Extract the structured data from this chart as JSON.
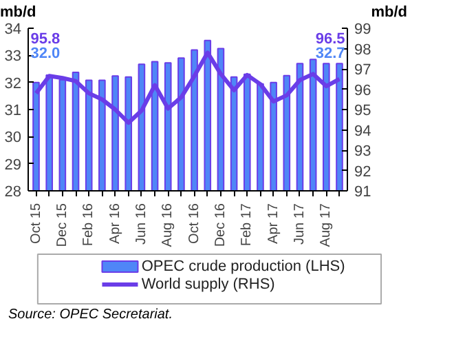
{
  "chart_data": {
    "type": "bar",
    "categories": [
      "Oct 15",
      null,
      "Dec 15",
      null,
      "Feb 16",
      null,
      "Apr 16",
      null,
      "Jun 16",
      null,
      "Aug 16",
      null,
      "Oct 16",
      null,
      "Dec 16",
      null,
      "Feb 17",
      null,
      "Apr 17",
      null,
      "Jun 17",
      null,
      "Aug 17",
      null
    ],
    "series": [
      {
        "name": "OPEC crude production (LHS)",
        "color": "#4f86f7",
        "values": [
          32.0,
          32.27,
          32.1,
          32.37,
          32.08,
          32.08,
          32.24,
          32.2,
          32.67,
          32.77,
          32.72,
          32.9,
          33.2,
          33.55,
          33.25,
          32.2,
          32.3,
          31.95,
          32.0,
          32.25,
          32.7,
          32.85,
          32.7,
          32.7
        ],
        "value_labels": [
          "32.0",
          null,
          null,
          null,
          null,
          null,
          null,
          null,
          null,
          null,
          null,
          null,
          null,
          null,
          null,
          null,
          null,
          null,
          null,
          null,
          null,
          null,
          null,
          "32.7"
        ]
      },
      {
        "name": "World supply (RHS)",
        "type": "line",
        "axis": "y2",
        "color": "#6a3de8",
        "values": [
          95.8,
          96.65,
          96.55,
          96.4,
          95.8,
          95.5,
          95.0,
          94.35,
          94.95,
          96.2,
          95.05,
          95.6,
          96.65,
          97.8,
          96.75,
          95.95,
          96.7,
          96.25,
          95.4,
          95.7,
          96.45,
          96.75,
          96.15,
          96.5
        ],
        "value_labels": [
          "95.8",
          null,
          null,
          null,
          null,
          null,
          null,
          null,
          null,
          null,
          null,
          null,
          null,
          null,
          null,
          null,
          null,
          null,
          null,
          null,
          null,
          null,
          null,
          "96.5"
        ]
      }
    ],
    "ylabel": "mb/d",
    "y2label": "mb/d",
    "ylim": [
      28,
      34
    ],
    "yticks": [
      28,
      29,
      30,
      31,
      32,
      33,
      34
    ],
    "y2lim": [
      91,
      99
    ],
    "y2ticks": [
      91,
      92,
      93,
      94,
      95,
      96,
      97,
      98,
      99
    ],
    "legend": "bottom",
    "annotations": [
      "Source: OPEC Secretariat."
    ]
  }
}
